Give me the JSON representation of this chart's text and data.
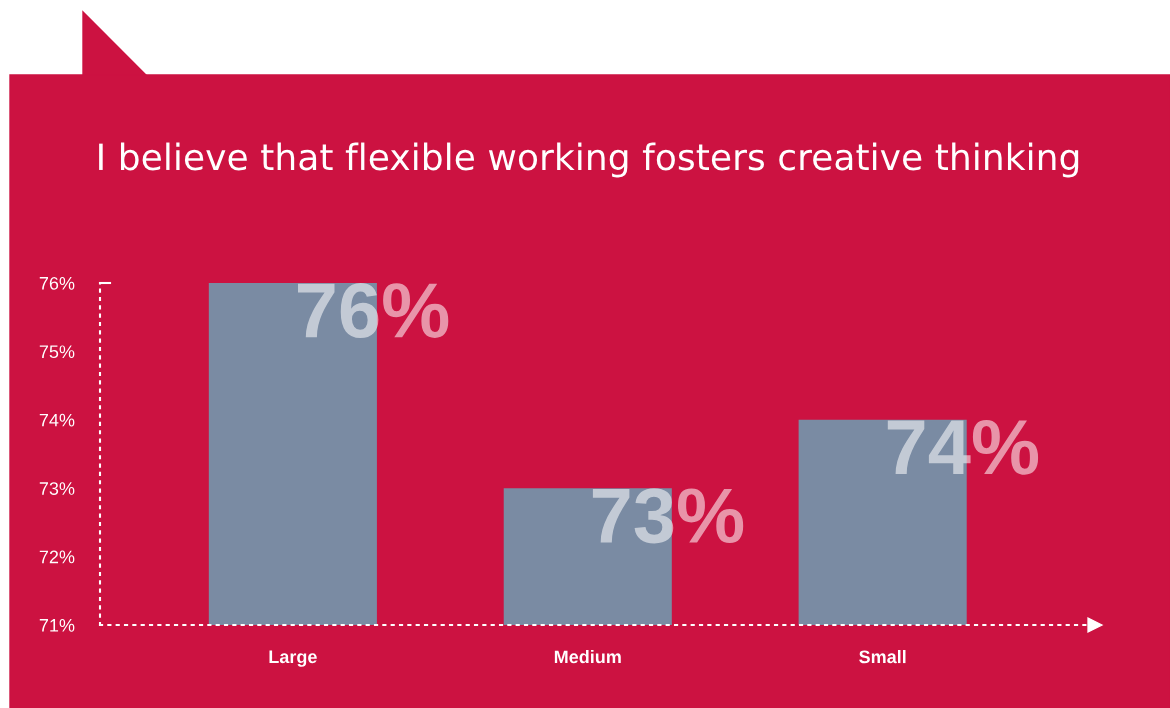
{
  "chart_data": {
    "type": "bar",
    "title": "I believe that flexible working fosters creative thinking",
    "categories": [
      "Large",
      "Medium",
      "Small"
    ],
    "values": [
      76,
      73,
      74
    ],
    "color": "#7a8ba3",
    "value_labels": [
      "76%",
      "73%",
      "74%"
    ],
    "ylim": [
      71,
      76
    ],
    "yticks": [
      {
        "value": 71,
        "label": "71%"
      },
      {
        "value": 72,
        "label": "72%"
      },
      {
        "value": 73,
        "label": "73%"
      },
      {
        "value": 74,
        "label": "74%"
      },
      {
        "value": 75,
        "label": "75%"
      },
      {
        "value": 76,
        "label": "76%"
      }
    ],
    "grid": false,
    "legend": false
  }
}
